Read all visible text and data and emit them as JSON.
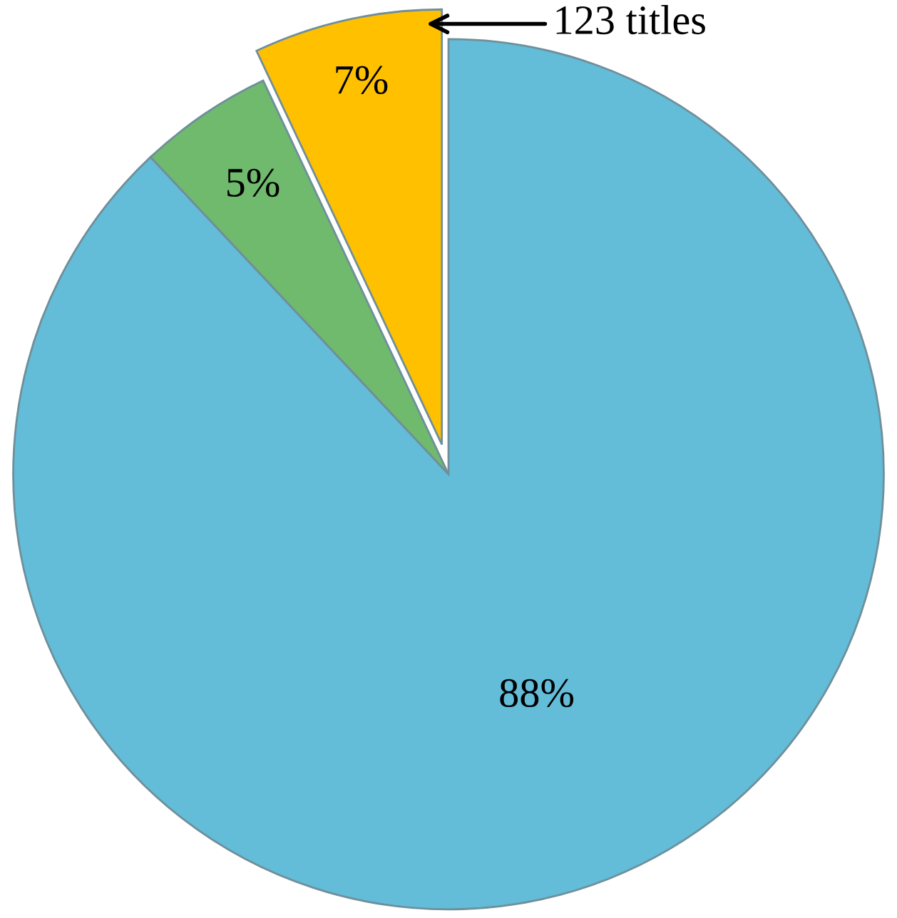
{
  "chart_data": {
    "type": "pie",
    "categories": [
      null,
      null,
      null
    ],
    "values": [
      88,
      5,
      7
    ],
    "colors": [
      "#63bcd8",
      "#6fba6c",
      "#ffc000"
    ],
    "value_labels": [
      "88%",
      "5%",
      "7%"
    ],
    "annotations": [
      "123 titles"
    ]
  }
}
